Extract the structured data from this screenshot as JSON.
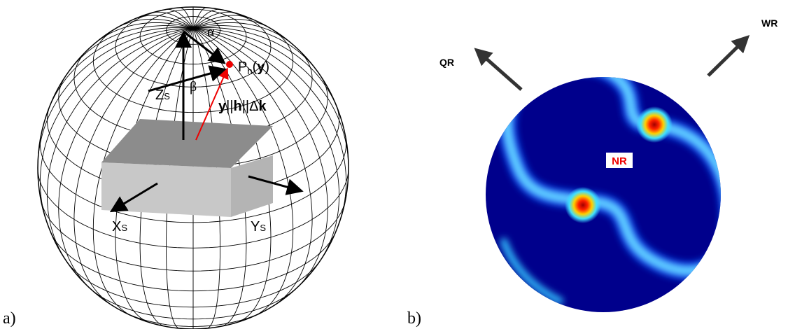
{
  "panel_a": {
    "label": "a)",
    "alpha": "α",
    "beta": "β",
    "p": {
      "main": "P",
      "sub": "h",
      "open": "(",
      "arg": "y",
      "close": ")"
    },
    "z": {
      "main": "Z",
      "sub": "S"
    },
    "x": {
      "main": "X",
      "sub": "S"
    },
    "y": {
      "main": "Y",
      "sub": "S"
    },
    "vector": {
      "a": "y",
      "sep1": "||",
      "b": "h",
      "sep2": "||Δ",
      "c": "k"
    }
  },
  "panel_b": {
    "label": "b)",
    "qr": "QR",
    "wr": "WR",
    "nr": "NR"
  }
}
